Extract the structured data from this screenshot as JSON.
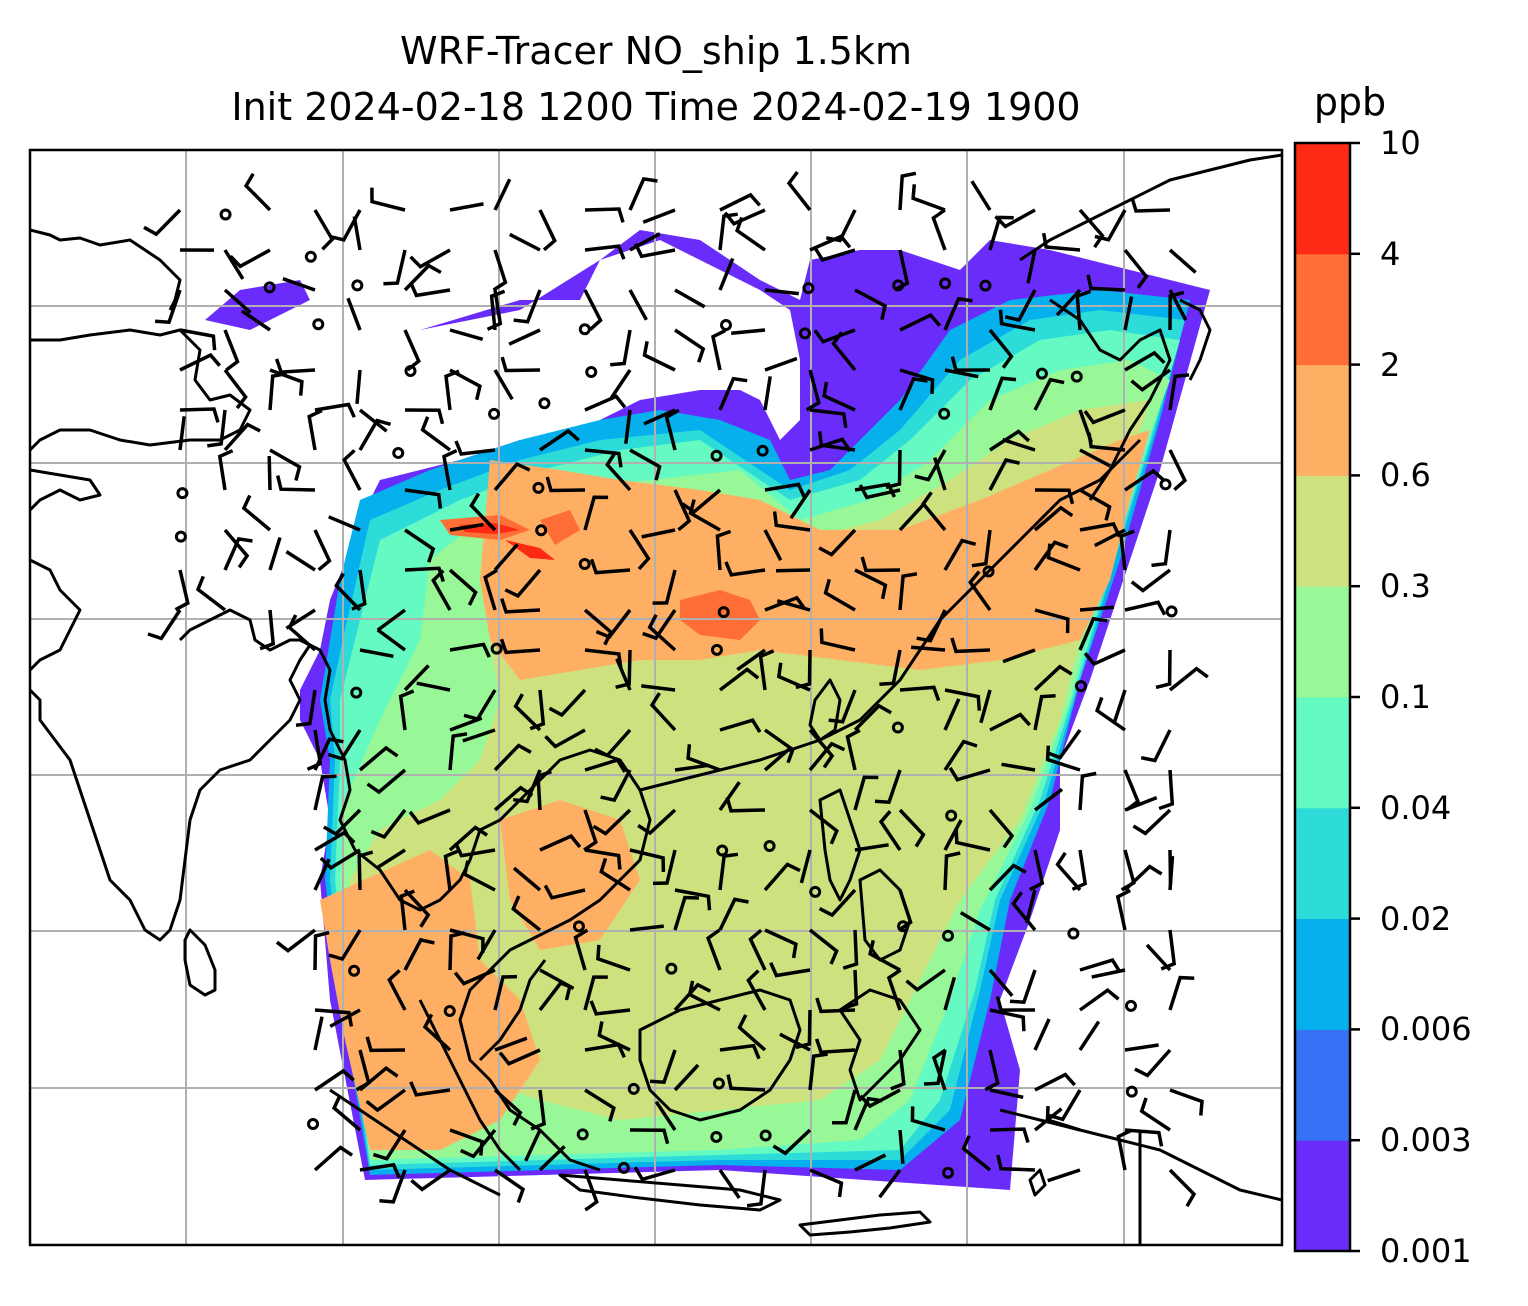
{
  "title": {
    "line1": "WRF-Tracer NO_ship 1.5km",
    "line2": "Init 2024-02-18 1200 Time 2024-02-19 1900"
  },
  "colorbar": {
    "unit": "ppb",
    "levels": [
      "0.001",
      "0.003",
      "0.006",
      "0.02",
      "0.04",
      "0.1",
      "0.3",
      "0.6",
      "2",
      "4",
      "10"
    ],
    "colors": [
      "#6a2cfb",
      "#3672f5",
      "#06b0ec",
      "#2ddcd8",
      "#64fac1",
      "#98f797",
      "#cee17f",
      "#feaf64",
      "#ff6e36",
      "#fe2a13"
    ]
  },
  "map": {
    "variable": "NO_ship tracer",
    "overlays": [
      "coastlines",
      "gridlines",
      "wind-barbs",
      "calm-wind-circles"
    ],
    "gridline_color": "#b0b0b0",
    "coast_color": "#000000"
  }
}
